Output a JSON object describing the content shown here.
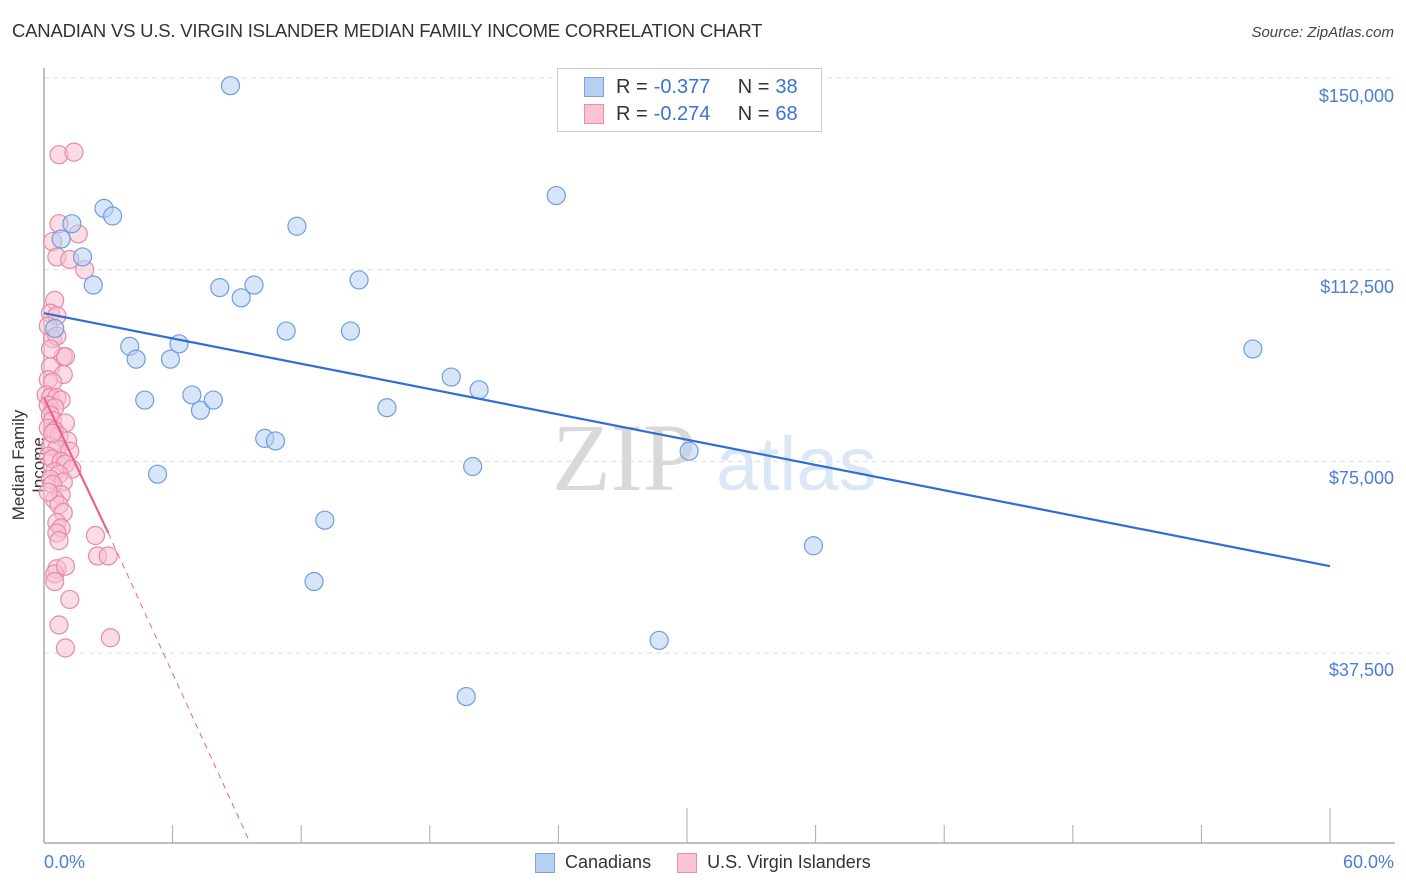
{
  "header": {
    "title": "CANADIAN VS U.S. VIRGIN ISLANDER MEDIAN FAMILY INCOME CORRELATION CHART",
    "source": "Source: ZipAtlas.com"
  },
  "legend": {
    "series": [
      {
        "r_label": "R = ",
        "r_value": "-0.377",
        "n_label": "N = ",
        "n_value": "38",
        "color": "#b7d0f2",
        "border": "#7aa3e0"
      },
      {
        "r_label": "R = ",
        "r_value": "-0.274",
        "n_label": "N = ",
        "n_value": "68",
        "color": "#f9c3d3",
        "border": "#eb8fab"
      }
    ]
  },
  "bottom_legend": {
    "items": [
      {
        "label": "Canadians"
      },
      {
        "label": "U.S. Virgin Islanders"
      }
    ]
  },
  "axes": {
    "ylabel": "Median Family Income",
    "y_ticks": [
      "$150,000",
      "$112,500",
      "$75,000",
      "$37,500"
    ],
    "x_min_label": "0.0%",
    "x_max_label": "60.0%"
  },
  "watermark": {
    "zip": "ZIP",
    "atlas": "atlas"
  },
  "colors": {
    "blue_fill": "#b7d0f2",
    "blue_stroke": "#6f9de0",
    "blue_line": "#2e6fd6",
    "pink_fill": "#f7bfd0",
    "pink_stroke": "#e889a7",
    "pink_line": "#e8648e",
    "tick_text": "#4a7fd4"
  },
  "chart_data": {
    "type": "scatter",
    "title": "CANADIAN VS U.S. VIRGIN ISLANDER MEDIAN FAMILY INCOME CORRELATION CHART",
    "xlabel": "",
    "ylabel": "Median Family Income",
    "xlim": [
      0,
      60
    ],
    "ylim": [
      0,
      155000
    ],
    "x_unit": "%",
    "y_ticks": [
      37500,
      75000,
      112500,
      150000
    ],
    "grid": "horizontal dashed",
    "legend_position": "top-center",
    "series": [
      {
        "name": "Canadians",
        "R": -0.377,
        "N": 38,
        "trend": {
          "x0": 0,
          "y0": 104000,
          "x1": 60,
          "y1": 54500
        },
        "points": [
          [
            8.7,
            148500
          ],
          [
            0.5,
            101000
          ],
          [
            1.3,
            121500
          ],
          [
            0.8,
            118500
          ],
          [
            2.8,
            124500
          ],
          [
            3.2,
            123000
          ],
          [
            1.8,
            115000
          ],
          [
            2.3,
            109500
          ],
          [
            11.8,
            121000
          ],
          [
            8.2,
            109000
          ],
          [
            9.2,
            107000
          ],
          [
            9.8,
            109500
          ],
          [
            14.7,
            110500
          ],
          [
            4.0,
            97500
          ],
          [
            4.3,
            95000
          ],
          [
            5.9,
            95000
          ],
          [
            6.3,
            98000
          ],
          [
            11.3,
            100500
          ],
          [
            14.3,
            100500
          ],
          [
            4.7,
            87000
          ],
          [
            6.9,
            88000
          ],
          [
            7.3,
            85000
          ],
          [
            7.9,
            87000
          ],
          [
            10.3,
            79500
          ],
          [
            10.8,
            79000
          ],
          [
            16.0,
            85500
          ],
          [
            19.0,
            91500
          ],
          [
            20.3,
            89000
          ],
          [
            5.3,
            72500
          ],
          [
            20.0,
            74000
          ],
          [
            13.1,
            63500
          ],
          [
            30.1,
            77000
          ],
          [
            35.9,
            58500
          ],
          [
            12.6,
            51500
          ],
          [
            28.7,
            40000
          ],
          [
            19.7,
            29000
          ],
          [
            23.9,
            127000
          ],
          [
            56.4,
            97000
          ]
        ]
      },
      {
        "name": "U.S. Virgin Islanders",
        "R": -0.274,
        "N": 68,
        "trend": {
          "x0": 0,
          "y0": 87500,
          "x1": 3.0,
          "y1": 61000,
          "dashed_to": {
            "x": 9.5,
            "y": 0
          }
        },
        "points": [
          [
            0.7,
            135000
          ],
          [
            1.4,
            135500
          ],
          [
            0.7,
            121500
          ],
          [
            0.4,
            118000
          ],
          [
            1.6,
            119500
          ],
          [
            0.6,
            115000
          ],
          [
            1.2,
            114500
          ],
          [
            1.9,
            112500
          ],
          [
            0.5,
            106500
          ],
          [
            0.3,
            104000
          ],
          [
            0.6,
            103500
          ],
          [
            0.2,
            101500
          ],
          [
            0.4,
            99000
          ],
          [
            0.6,
            99500
          ],
          [
            0.9,
            95500
          ],
          [
            1.0,
            95500
          ],
          [
            0.3,
            93500
          ],
          [
            0.9,
            92000
          ],
          [
            0.2,
            91000
          ],
          [
            0.4,
            90500
          ],
          [
            0.1,
            88000
          ],
          [
            0.3,
            87500
          ],
          [
            0.6,
            87500
          ],
          [
            0.8,
            87000
          ],
          [
            0.2,
            86000
          ],
          [
            0.5,
            85500
          ],
          [
            0.3,
            84000
          ],
          [
            0.4,
            83000
          ],
          [
            1.0,
            82500
          ],
          [
            0.2,
            81500
          ],
          [
            0.5,
            81000
          ],
          [
            0.7,
            80000
          ],
          [
            1.1,
            79000
          ],
          [
            0.3,
            78000
          ],
          [
            0.6,
            77500
          ],
          [
            1.2,
            77000
          ],
          [
            0.2,
            76000
          ],
          [
            0.4,
            75500
          ],
          [
            0.8,
            75000
          ],
          [
            1.0,
            74500
          ],
          [
            1.3,
            73500
          ],
          [
            0.5,
            73000
          ],
          [
            0.7,
            72500
          ],
          [
            0.3,
            71500
          ],
          [
            0.9,
            71000
          ],
          [
            0.4,
            70500
          ],
          [
            0.8,
            68500
          ],
          [
            0.5,
            67500
          ],
          [
            0.7,
            66500
          ],
          [
            0.9,
            65000
          ],
          [
            0.6,
            63000
          ],
          [
            0.8,
            62000
          ],
          [
            0.6,
            61000
          ],
          [
            0.7,
            59500
          ],
          [
            2.4,
            60500
          ],
          [
            2.5,
            56500
          ],
          [
            3.0,
            56500
          ],
          [
            0.6,
            54000
          ],
          [
            0.5,
            53000
          ],
          [
            1.0,
            54500
          ],
          [
            0.5,
            51500
          ],
          [
            1.2,
            48000
          ],
          [
            0.7,
            43000
          ],
          [
            3.1,
            40500
          ],
          [
            1.0,
            38500
          ],
          [
            0.3,
            97000
          ],
          [
            0.4,
            80500
          ],
          [
            0.2,
            69000
          ]
        ]
      }
    ]
  }
}
